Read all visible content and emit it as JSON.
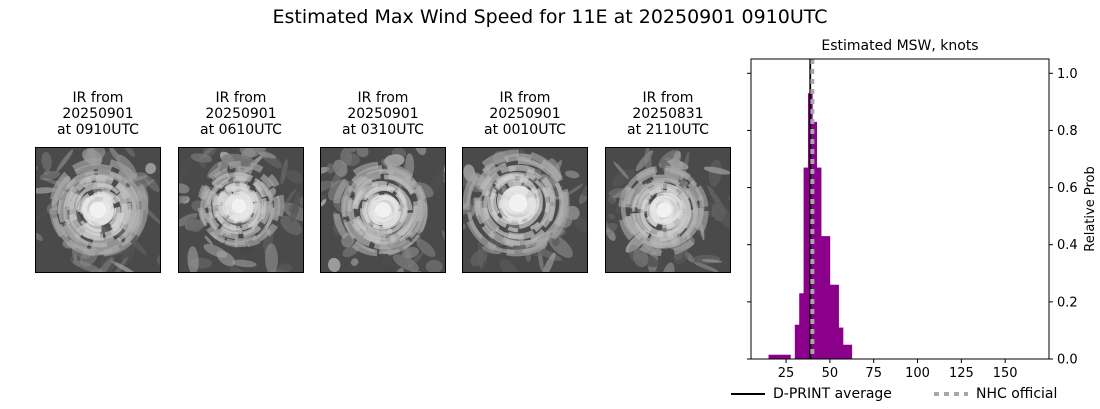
{
  "title": "Estimated Max Wind Speed for 11E at 20250901 0910UTC",
  "panels": [
    {
      "line1": "IR from",
      "line2": "20250901",
      "line3": "at 0910UTC",
      "image": "ir-satellite-image"
    },
    {
      "line1": "IR from",
      "line2": "20250901",
      "line3": "at 0610UTC",
      "image": "ir-satellite-image"
    },
    {
      "line1": "IR from",
      "line2": "20250901",
      "line3": "at 0310UTC",
      "image": "ir-satellite-image"
    },
    {
      "line1": "IR from",
      "line2": "20250901",
      "line3": "at 0010UTC",
      "image": "ir-satellite-image"
    },
    {
      "line1": "IR from",
      "line2": "20250831",
      "line3": "at 2110UTC",
      "image": "ir-satellite-image"
    }
  ],
  "chart_data": {
    "type": "bar",
    "title": "Estimated MSW, knots",
    "xlabel": "",
    "ylabel": "Relative Prob",
    "xlim": [
      5,
      175
    ],
    "ylim": [
      0,
      1.05
    ],
    "xticks": [
      25,
      50,
      75,
      100,
      125,
      150
    ],
    "yticks": [
      0.0,
      0.2,
      0.4,
      0.6,
      0.8,
      1.0
    ],
    "ytick_labels": [
      "0.0",
      "0.2",
      "0.4",
      "0.6",
      "0.8",
      "1.0"
    ],
    "bar_color": "#8b008b",
    "bins": [
      {
        "x0": 15,
        "x1": 17.5,
        "value": 0.015
      },
      {
        "x0": 17.5,
        "x1": 20,
        "value": 0.015
      },
      {
        "x0": 20,
        "x1": 22.5,
        "value": 0.015
      },
      {
        "x0": 22.5,
        "x1": 25,
        "value": 0.015
      },
      {
        "x0": 25,
        "x1": 27.5,
        "value": 0.015
      },
      {
        "x0": 30,
        "x1": 32.5,
        "value": 0.12
      },
      {
        "x0": 32.5,
        "x1": 35,
        "value": 0.23
      },
      {
        "x0": 35,
        "x1": 37.5,
        "value": 0.67
      },
      {
        "x0": 37.5,
        "x1": 40,
        "value": 0.93
      },
      {
        "x0": 40,
        "x1": 42.5,
        "value": 0.83
      },
      {
        "x0": 42.5,
        "x1": 45,
        "value": 0.67
      },
      {
        "x0": 45,
        "x1": 47.5,
        "value": 0.43
      },
      {
        "x0": 47.5,
        "x1": 50,
        "value": 0.43
      },
      {
        "x0": 50,
        "x1": 52.5,
        "value": 0.26
      },
      {
        "x0": 52.5,
        "x1": 55,
        "value": 0.26
      },
      {
        "x0": 55,
        "x1": 57.5,
        "value": 0.11
      },
      {
        "x0": 57.5,
        "x1": 60,
        "value": 0.05
      },
      {
        "x0": 60,
        "x1": 62.5,
        "value": 0.05
      }
    ],
    "lines": [
      {
        "name": "D-PRINT average",
        "x": 38.8,
        "color": "#000000",
        "style": "solid"
      },
      {
        "name": "NHC official",
        "x": 40,
        "color": "#a8a8a8",
        "style": "dotted"
      }
    ],
    "legend_placement": "bottom"
  }
}
